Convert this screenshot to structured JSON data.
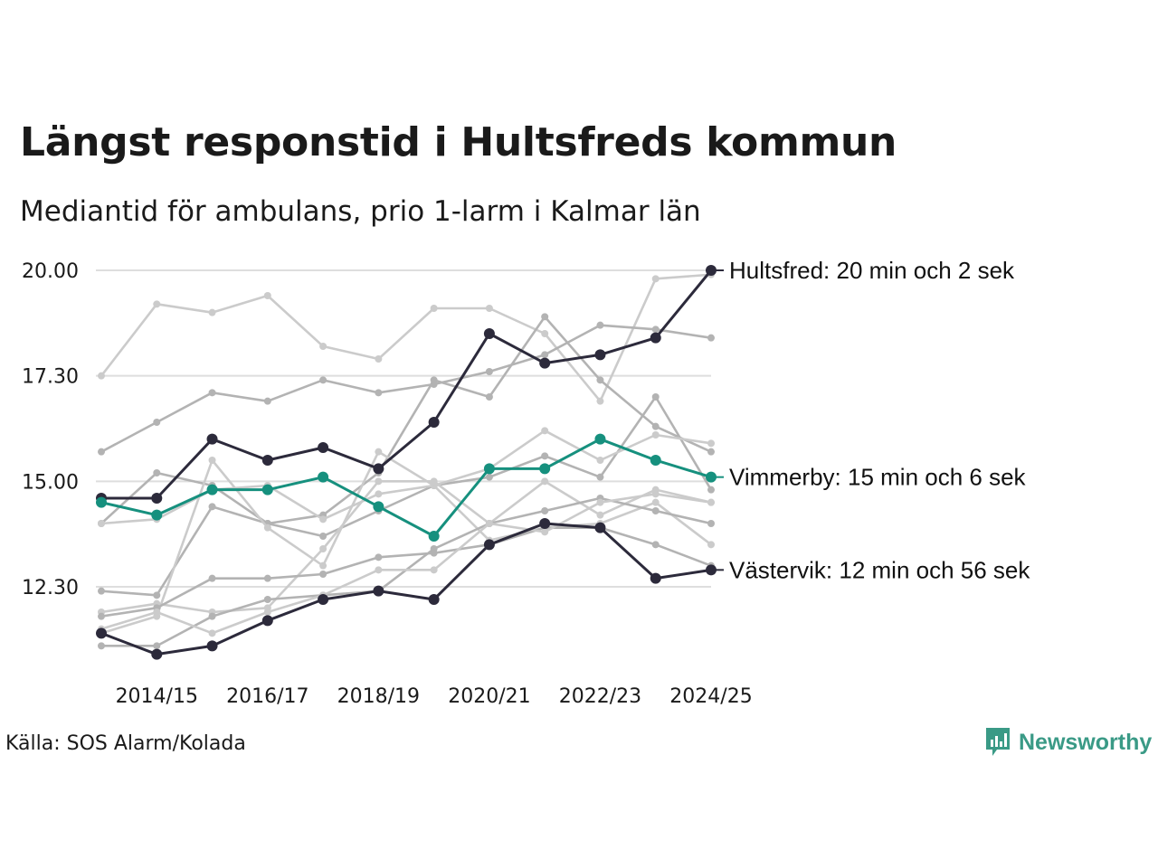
{
  "chart_data": {
    "type": "line",
    "title": "Längst responstid i Hultsfreds kommun",
    "subtitle": "Mediantid för ambulans, prio 1-larm i Kalmar län",
    "ylim": [
      10.6,
      20.3
    ],
    "y_ticks": [
      "20.00",
      "17.30",
      "15.00",
      "12.30"
    ],
    "y_tick_values": [
      20.0,
      17.5,
      15.0,
      12.5
    ],
    "x": [
      "2013/14",
      "2014/15",
      "2015/16",
      "2016/17",
      "2017/18",
      "2018/19",
      "2019/20",
      "2020/21",
      "2021/22",
      "2022/23",
      "2023/24",
      "2024/25"
    ],
    "x_tick_labels": [
      "2014/15",
      "2016/17",
      "2018/19",
      "2020/21",
      "2022/23",
      "2024/25"
    ],
    "x_tick_indices": [
      1,
      3,
      5,
      7,
      9,
      11
    ],
    "grid": true,
    "colors": {
      "highlight_dark": "#2c2a3b",
      "highlight_teal": "#16907e",
      "gray_light": "#cbcbcb",
      "gray_mid": "#b3b3b3",
      "gridline": "#dedede"
    },
    "series": [
      {
        "name": "",
        "color": "gray_light",
        "values": [
          17.5,
          19.2,
          19.0,
          19.4,
          18.2,
          17.9,
          19.1,
          19.1,
          18.5,
          16.9,
          19.8,
          19.9
        ]
      },
      {
        "name": "",
        "color": "gray_mid",
        "values": [
          15.7,
          16.4,
          17.1,
          16.9,
          17.4,
          17.1,
          17.3,
          17.6,
          18.0,
          18.7,
          18.6,
          18.4
        ]
      },
      {
        "name": "",
        "color": "gray_mid",
        "values": [
          14.0,
          15.2,
          14.9,
          14.0,
          13.7,
          14.3,
          14.9,
          15.1,
          15.6,
          15.1,
          17.0,
          14.8
        ]
      },
      {
        "name": "",
        "color": "gray_mid",
        "values": [
          12.4,
          12.3,
          14.4,
          14.0,
          14.2,
          15.2,
          17.4,
          17.0,
          18.9,
          17.4,
          16.3,
          15.7
        ]
      },
      {
        "name": "",
        "color": "gray_light",
        "values": [
          11.4,
          11.8,
          15.5,
          13.9,
          13.0,
          15.7,
          14.9,
          13.6,
          13.9,
          14.0,
          14.5,
          13.5
        ]
      },
      {
        "name": "",
        "color": "gray_light",
        "values": [
          14.0,
          14.1,
          14.8,
          14.9,
          14.1,
          14.7,
          14.9,
          15.3,
          16.2,
          15.5,
          16.1,
          15.9
        ]
      },
      {
        "name": "",
        "color": "gray_light",
        "values": [
          11.9,
          12.1,
          11.9,
          12.0,
          13.4,
          15.0,
          15.0,
          14.0,
          15.0,
          14.2,
          14.8,
          14.5
        ]
      },
      {
        "name": "",
        "color": "gray_mid",
        "values": [
          11.8,
          12.0,
          12.7,
          12.7,
          12.8,
          13.2,
          13.3,
          13.5,
          13.9,
          13.9,
          13.5,
          13.0
        ]
      },
      {
        "name": "",
        "color": "gray_mid",
        "values": [
          11.1,
          11.1,
          11.8,
          12.2,
          12.3,
          12.4,
          13.4,
          14.0,
          14.3,
          14.6,
          14.3,
          14.0
        ]
      },
      {
        "name": "",
        "color": "gray_light",
        "values": [
          11.5,
          11.9,
          11.4,
          11.9,
          12.3,
          12.9,
          12.9,
          14.0,
          13.8,
          14.5,
          14.7,
          14.5
        ]
      },
      {
        "name": "Hultsfred",
        "color": "highlight_dark",
        "end_label": "Hultsfred: 20 min och 2 sek",
        "values": [
          14.6,
          14.6,
          16.0,
          15.5,
          15.8,
          15.3,
          16.4,
          18.5,
          17.8,
          18.0,
          18.4,
          20.0
        ]
      },
      {
        "name": "Vimmerby",
        "color": "highlight_teal",
        "end_label": "Vimmerby: 15 min och 6 sek",
        "values": [
          14.5,
          14.2,
          14.8,
          14.8,
          15.1,
          14.4,
          13.7,
          15.3,
          15.3,
          16.0,
          15.5,
          15.1
        ]
      },
      {
        "name": "Västervik",
        "color": "highlight_dark",
        "end_label": "Västervik: 12 min och 56 sek",
        "values": [
          11.4,
          10.9,
          11.1,
          11.7,
          12.2,
          12.4,
          12.2,
          13.5,
          14.0,
          13.9,
          12.7,
          12.9
        ]
      }
    ]
  },
  "source": "Källa: SOS Alarm/Kolada",
  "brand": {
    "name": "Newsworthy",
    "icon": "bar-chart-logo-icon",
    "color": "#3a9a86"
  }
}
